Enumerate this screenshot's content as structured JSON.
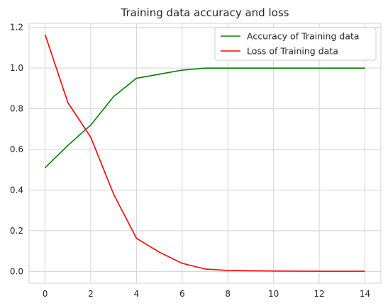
{
  "chart_data": {
    "type": "line",
    "title": "Training data accuracy and loss",
    "xlabel": "",
    "ylabel": "",
    "xlim": [
      -0.7,
      14.7
    ],
    "ylim": [
      -0.058,
      1.22
    ],
    "xticks": [
      0,
      2,
      4,
      6,
      8,
      10,
      12,
      14
    ],
    "xtick_labels": [
      "0",
      "2",
      "4",
      "6",
      "8",
      "10",
      "12",
      "14"
    ],
    "yticks": [
      0.0,
      0.2,
      0.4,
      0.6,
      0.8,
      1.0,
      1.2
    ],
    "ytick_labels": [
      "0.0",
      "0.2",
      "0.4",
      "0.6",
      "0.8",
      "1.0",
      "1.2"
    ],
    "grid": true,
    "legend_position": "top-right",
    "x": [
      0,
      1,
      2,
      3,
      4,
      5,
      6,
      7,
      8,
      9,
      10,
      11,
      12,
      13,
      14
    ],
    "series": [
      {
        "name": "Accuracy of Training data",
        "color": "#008000",
        "values": [
          0.51,
          0.62,
          0.72,
          0.86,
          0.95,
          0.97,
          0.99,
          1.0,
          1.0,
          1.0,
          1.0,
          1.0,
          1.0,
          1.0,
          1.0
        ]
      },
      {
        "name": "Loss of Training data",
        "color": "#ff0000",
        "values": [
          1.165,
          0.83,
          0.66,
          0.38,
          0.163,
          0.095,
          0.04,
          0.012,
          0.005,
          0.003,
          0.002,
          0.0015,
          0.001,
          0.001,
          0.001
        ]
      }
    ]
  }
}
